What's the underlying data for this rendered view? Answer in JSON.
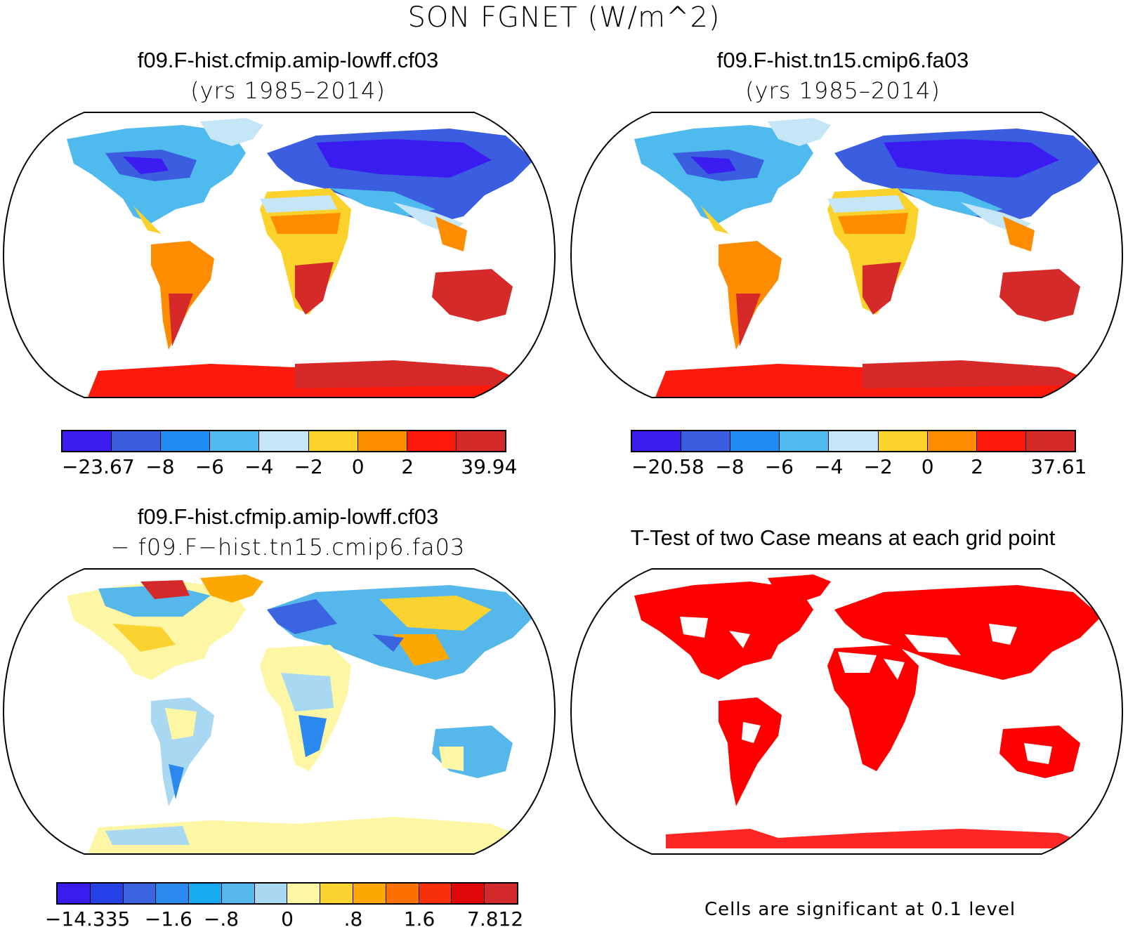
{
  "figure_title": "SON FGNET (W/m^2)",
  "panels": [
    {
      "title": "f09.F-hist.cfmip.amip-lowff.cf03",
      "subtitle": "(yrs 1985–2014)",
      "colorbar": {
        "colors": [
          "#3a1cf0",
          "#3b5de0",
          "#1e8cf0",
          "#4fbaee",
          "#c4e6f7",
          "#fbd12c",
          "#fd8c00",
          "#fb1a0c",
          "#d62a2a"
        ],
        "tick_labels": [
          "−23.67",
          "−8",
          "−6",
          "−4",
          "−2",
          "0",
          "2",
          "39.94"
        ]
      }
    },
    {
      "title": "f09.F-hist.tn15.cmip6.fa03",
      "subtitle": "(yrs 1985–2014)",
      "colorbar": {
        "colors": [
          "#3a1cf0",
          "#3b5de0",
          "#1e8cf0",
          "#4fbaee",
          "#c4e6f7",
          "#fbd12c",
          "#fd8c00",
          "#fb1a0c",
          "#d62a2a"
        ],
        "tick_labels": [
          "−20.58",
          "−8",
          "−6",
          "−4",
          "−2",
          "0",
          "2",
          "37.61"
        ]
      }
    },
    {
      "title": "f09.F-hist.cfmip.amip-lowff.cf03",
      "subtitle": "− f09.F−hist.tn15.cmip6.fa03",
      "colorbar": {
        "colors": [
          "#3a1cf0",
          "#2440e8",
          "#3a64e0",
          "#2a88ee",
          "#16aaf0",
          "#56b8ea",
          "#a8d8f2",
          "#fdf6a4",
          "#fbd330",
          "#fda800",
          "#fd7000",
          "#f8300a",
          "#e00808",
          "#d22a2a"
        ],
        "tick_labels": [
          "−14.335",
          "−1.6",
          "−.8",
          "0",
          ".8",
          "1.6",
          "7.812"
        ]
      }
    },
    {
      "title": "T-Test of two Case means at each grid point",
      "note": "Cells are significant at 0.1 level",
      "sig_color": "#ff0000"
    }
  ]
}
